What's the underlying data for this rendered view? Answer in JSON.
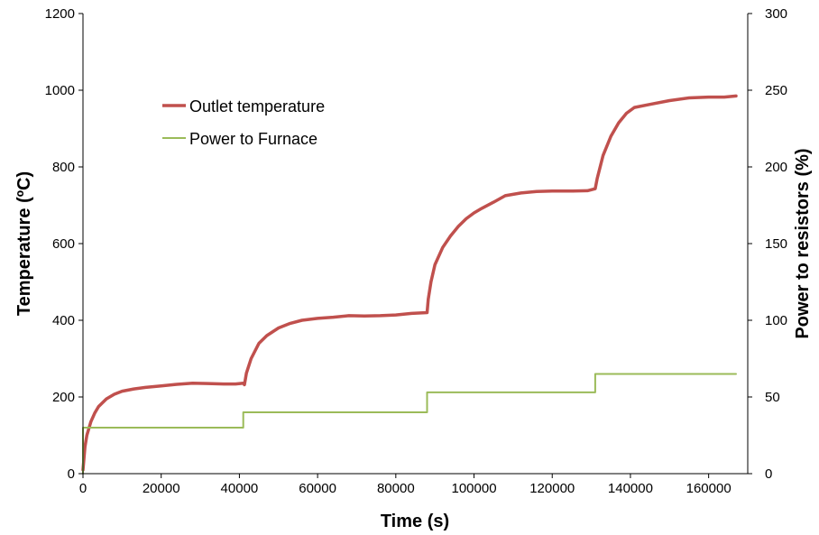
{
  "chart_data": {
    "type": "line",
    "xlabel": "Time (s)",
    "ylabel": "Temperature (ºC)",
    "y2label": "Power to resistors (%)",
    "xlim": [
      0,
      170000
    ],
    "ylim": [
      0,
      1200
    ],
    "y2lim": [
      0,
      300
    ],
    "x_ticks": [
      "0",
      "20000",
      "40000",
      "60000",
      "80000",
      "100000",
      "120000",
      "140000",
      "160000"
    ],
    "y_ticks": [
      "0",
      "200",
      "400",
      "600",
      "800",
      "1000",
      "1200"
    ],
    "y2_ticks": [
      "0",
      "50",
      "100",
      "150",
      "200",
      "250",
      "300"
    ],
    "grid": false,
    "legend_position": "upper-left",
    "series": [
      {
        "name": "Outlet temperature",
        "axis": "left",
        "color": "#c0504d",
        "points": [
          [
            0,
            10
          ],
          [
            500,
            70
          ],
          [
            1000,
            100
          ],
          [
            2000,
            135
          ],
          [
            3000,
            158
          ],
          [
            4000,
            175
          ],
          [
            6000,
            195
          ],
          [
            8000,
            207
          ],
          [
            10000,
            215
          ],
          [
            13000,
            221
          ],
          [
            16000,
            225
          ],
          [
            20000,
            229
          ],
          [
            24000,
            233
          ],
          [
            28000,
            236
          ],
          [
            32000,
            235
          ],
          [
            36000,
            234
          ],
          [
            39000,
            234
          ],
          [
            41000,
            236
          ],
          [
            41300,
            232
          ],
          [
            41800,
            262
          ],
          [
            43000,
            300
          ],
          [
            45000,
            340
          ],
          [
            47000,
            360
          ],
          [
            50000,
            380
          ],
          [
            53000,
            392
          ],
          [
            56000,
            400
          ],
          [
            60000,
            405
          ],
          [
            64000,
            408
          ],
          [
            68000,
            412
          ],
          [
            72000,
            411
          ],
          [
            76000,
            412
          ],
          [
            80000,
            414
          ],
          [
            84000,
            418
          ],
          [
            88000,
            420
          ],
          [
            88300,
            455
          ],
          [
            89000,
            500
          ],
          [
            90000,
            545
          ],
          [
            92000,
            590
          ],
          [
            94000,
            620
          ],
          [
            96000,
            645
          ],
          [
            98000,
            665
          ],
          [
            100000,
            680
          ],
          [
            102000,
            692
          ],
          [
            105000,
            708
          ],
          [
            108000,
            725
          ],
          [
            112000,
            732
          ],
          [
            116000,
            736
          ],
          [
            120000,
            737
          ],
          [
            125000,
            737
          ],
          [
            129000,
            738
          ],
          [
            131000,
            743
          ],
          [
            131500,
            770
          ],
          [
            133000,
            830
          ],
          [
            135000,
            880
          ],
          [
            137000,
            915
          ],
          [
            139000,
            940
          ],
          [
            141000,
            955
          ],
          [
            145000,
            963
          ],
          [
            150000,
            973
          ],
          [
            155000,
            980
          ],
          [
            160000,
            982
          ],
          [
            164000,
            982
          ],
          [
            167000,
            985
          ]
        ]
      },
      {
        "name": "Power to Furnace",
        "axis": "right",
        "color": "#9bbb59",
        "points": [
          [
            0,
            0
          ],
          [
            0,
            30
          ],
          [
            41000,
            30
          ],
          [
            41000,
            40
          ],
          [
            88000,
            40
          ],
          [
            88000,
            53
          ],
          [
            131000,
            53
          ],
          [
            131000,
            65
          ],
          [
            167000,
            65
          ]
        ]
      }
    ]
  }
}
